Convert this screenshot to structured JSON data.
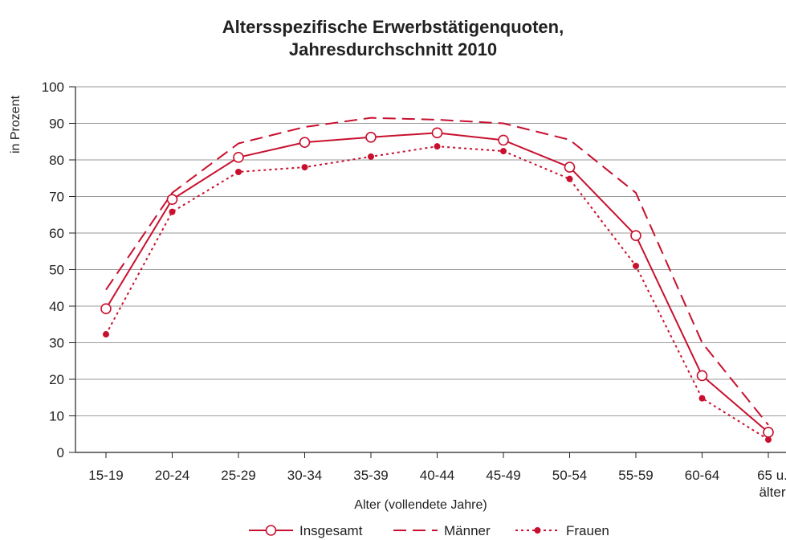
{
  "chart_data": {
    "type": "line",
    "title": "Altersspezifische Erwerbstätigenquoten,",
    "subtitle": "Jahresdurchschnitt 2010",
    "xlabel": "Alter (vollendete Jahre)",
    "ylabel": "in Prozent",
    "categories": [
      "15-19",
      "20-24",
      "25-29",
      "30-34",
      "35-39",
      "40-44",
      "45-49",
      "50-54",
      "55-59",
      "60-64",
      "65 u. älter"
    ],
    "category_lines": [
      [
        "15-19"
      ],
      [
        "20-24"
      ],
      [
        "25-29"
      ],
      [
        "30-34"
      ],
      [
        "35-39"
      ],
      [
        "40-44"
      ],
      [
        "45-49"
      ],
      [
        "50-54"
      ],
      [
        "55-59"
      ],
      [
        "60-64"
      ],
      [
        "65 u.",
        "älter"
      ]
    ],
    "ylim": [
      0,
      100
    ],
    "yticks": [
      0,
      10,
      20,
      30,
      40,
      50,
      60,
      70,
      80,
      90,
      100
    ],
    "grid": true,
    "legend_position": "bottom",
    "series": [
      {
        "name": "Insgesamt",
        "style": "solid-open-circle",
        "color": "#c8102e",
        "values": [
          39.3,
          69.2,
          80.7,
          84.8,
          86.2,
          87.4,
          85.4,
          78.0,
          59.3,
          21.0,
          5.5
        ]
      },
      {
        "name": "Männer",
        "style": "long-dash",
        "color": "#c8102e",
        "values": [
          44.5,
          71.0,
          84.5,
          89.0,
          91.5,
          91.0,
          90.0,
          85.5,
          71.0,
          30.0,
          7.5
        ]
      },
      {
        "name": "Frauen",
        "style": "dotted-filled-dot",
        "color": "#c8102e",
        "values": [
          32.3,
          65.8,
          76.7,
          78.0,
          80.9,
          83.7,
          82.4,
          74.8,
          51.0,
          14.8,
          3.5
        ]
      }
    ]
  }
}
